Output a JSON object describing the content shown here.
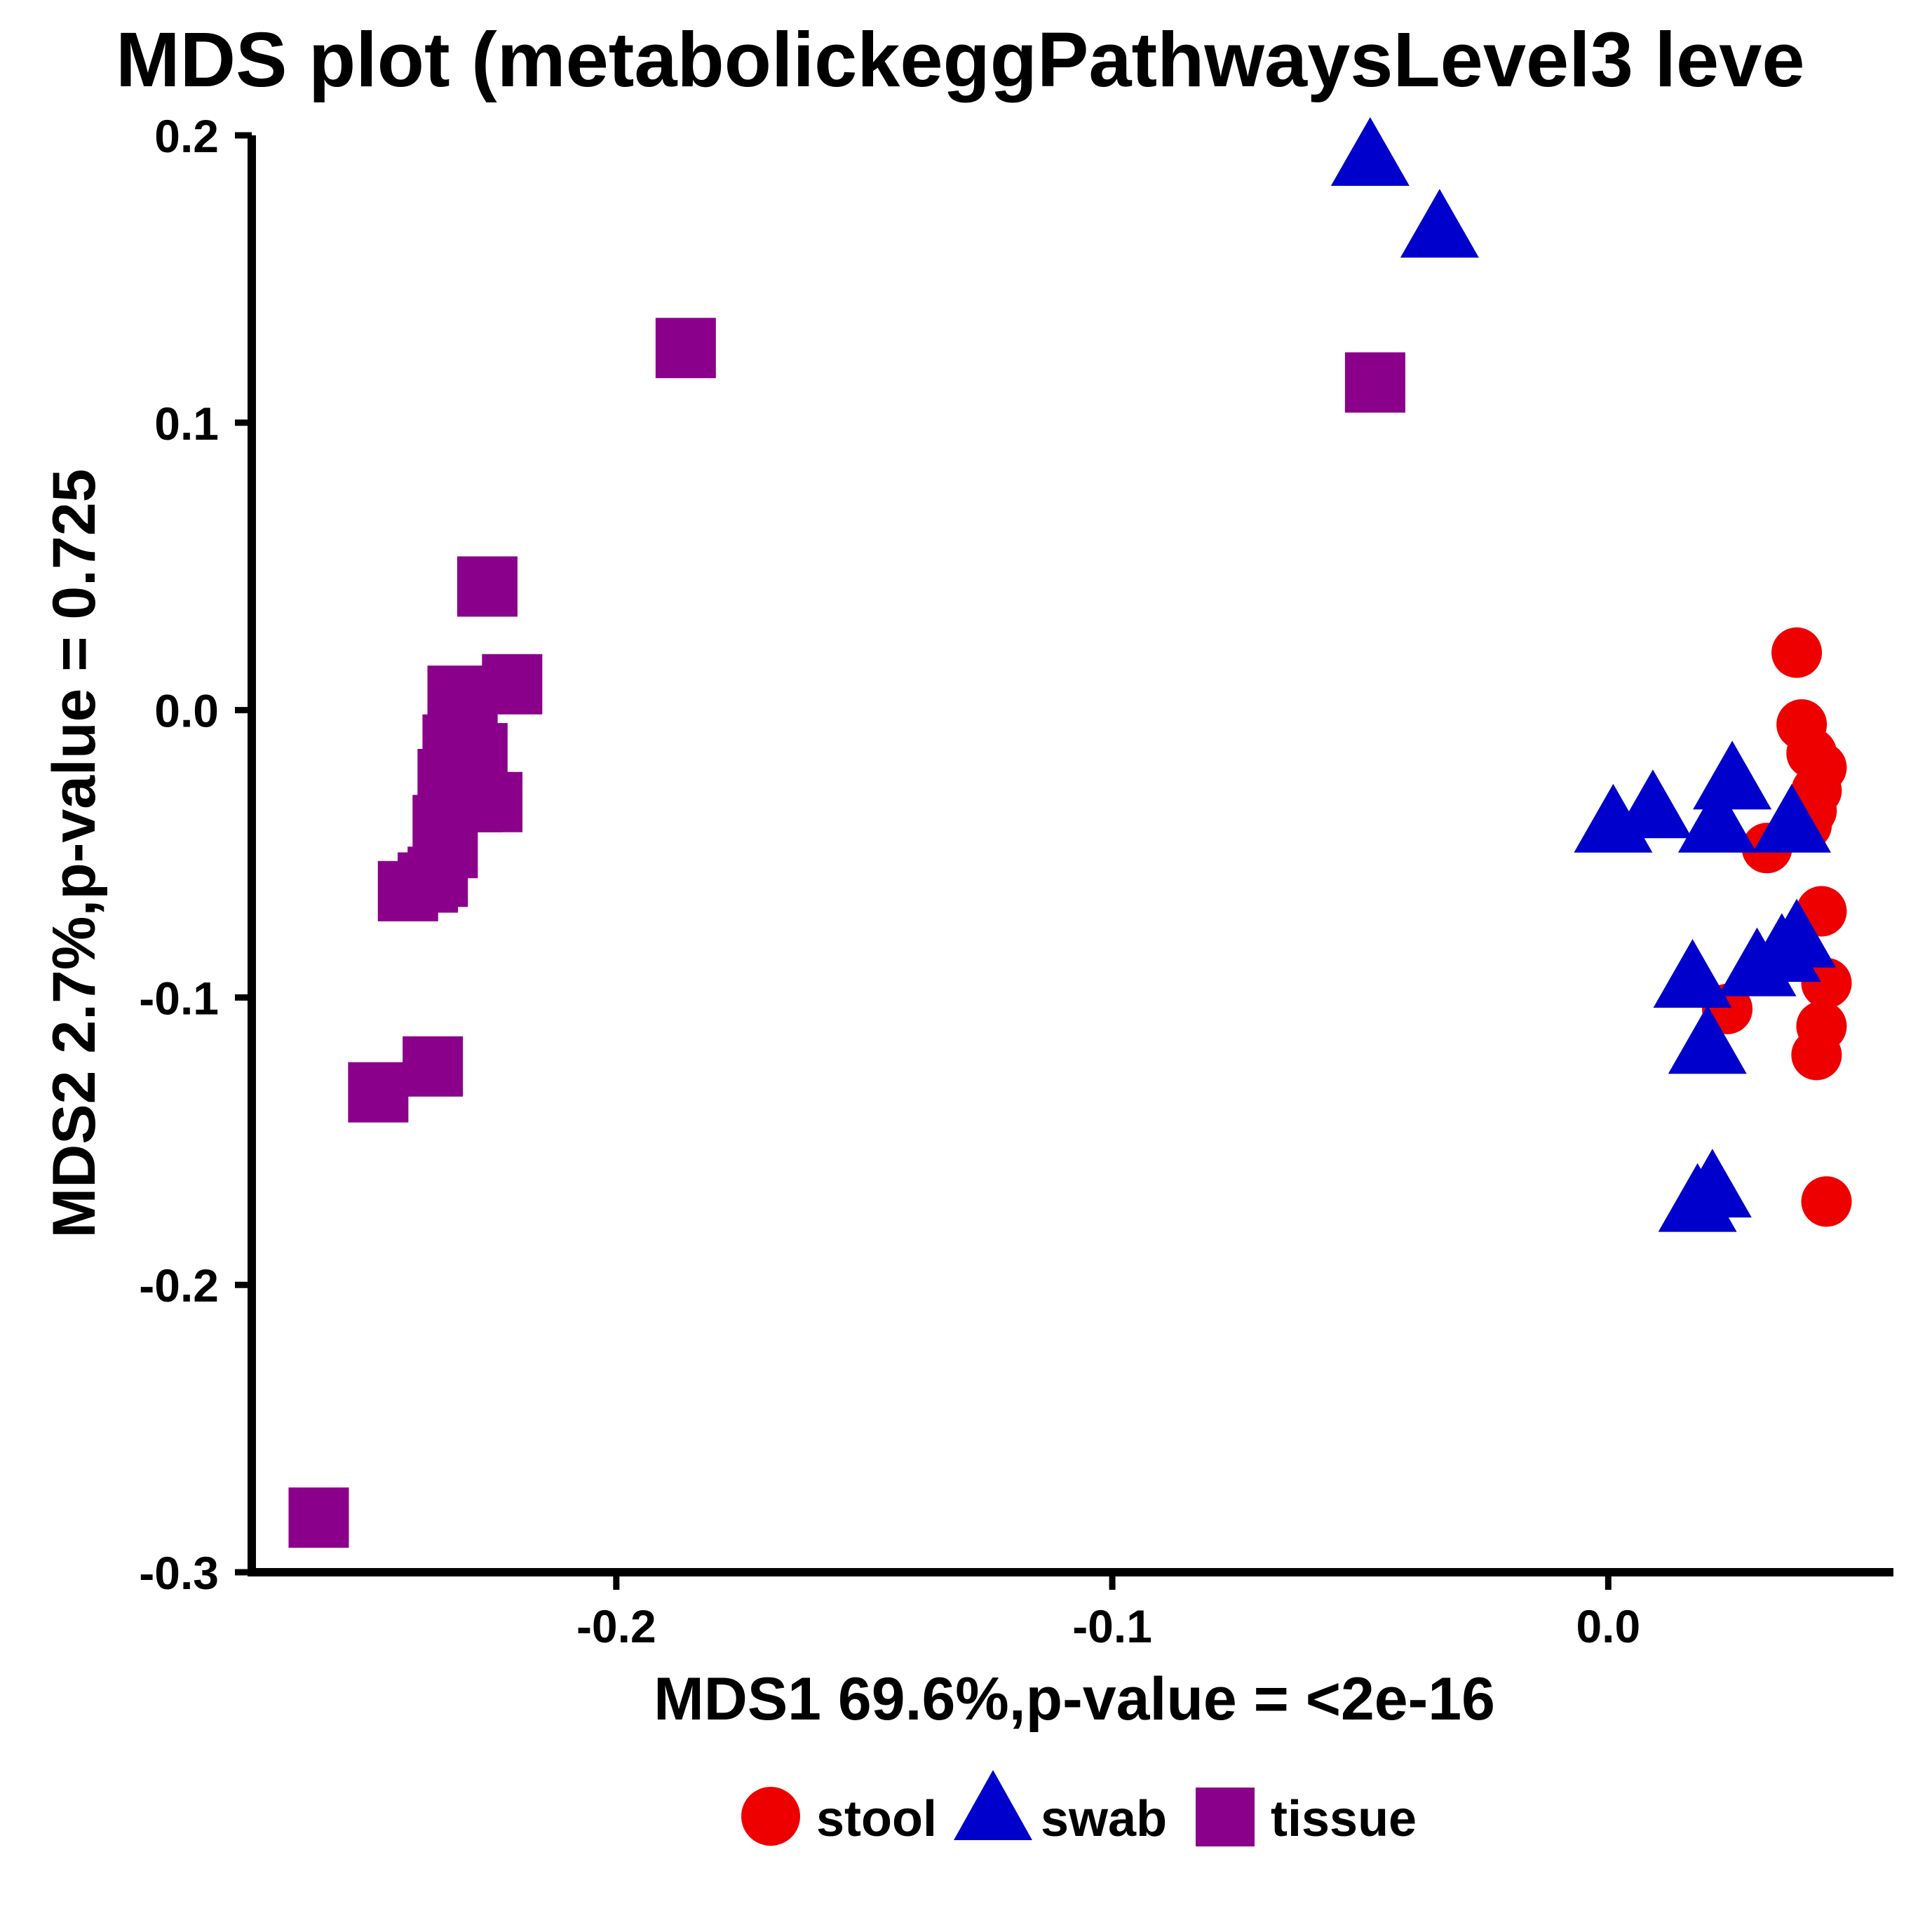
{
  "chart_data": {
    "type": "scatter",
    "title": "MDS plot (metabolickeggPathwaysLevel3 leve",
    "xlabel": "MDS1 69.6%,p-value = <2e-16",
    "ylabel": "MDS2 2.7%,p-value = 0.725",
    "xlim": [
      -0.2735,
      0.0575
    ],
    "ylim": [
      -0.3,
      0.2
    ],
    "x_ticks": [
      -0.2,
      -0.1,
      0.0
    ],
    "x_tick_labels": [
      "-0.2",
      "-0.1",
      "0.0"
    ],
    "y_ticks": [
      -0.3,
      -0.2,
      -0.1,
      0.0,
      0.1,
      0.2
    ],
    "y_tick_labels": [
      "-0.3",
      "-0.2",
      "-0.1",
      "0.0",
      "0.1",
      "0.2"
    ],
    "grid": false,
    "legend": {
      "position": "bottom",
      "entries": [
        "stool",
        "swab",
        "tissue"
      ]
    },
    "series": [
      {
        "name": "stool",
        "shape": "circle",
        "color": "#ee0000",
        "points": [
          {
            "x": 0.038,
            "y": 0.02
          },
          {
            "x": 0.039,
            "y": -0.005
          },
          {
            "x": 0.041,
            "y": -0.015
          },
          {
            "x": 0.043,
            "y": -0.02
          },
          {
            "x": 0.042,
            "y": -0.028
          },
          {
            "x": 0.041,
            "y": -0.035
          },
          {
            "x": 0.04,
            "y": -0.04
          },
          {
            "x": 0.032,
            "y": -0.048
          },
          {
            "x": 0.043,
            "y": -0.07
          },
          {
            "x": 0.044,
            "y": -0.095
          },
          {
            "x": 0.024,
            "y": -0.104
          },
          {
            "x": 0.043,
            "y": -0.11
          },
          {
            "x": 0.042,
            "y": -0.12
          },
          {
            "x": 0.044,
            "y": -0.171
          }
        ]
      },
      {
        "name": "swab",
        "shape": "triangle",
        "color": "#0000cc",
        "points": [
          {
            "x": -0.048,
            "y": 0.192
          },
          {
            "x": -0.034,
            "y": 0.167
          },
          {
            "x": 0.001,
            "y": -0.04
          },
          {
            "x": 0.009,
            "y": -0.035
          },
          {
            "x": 0.025,
            "y": -0.025
          },
          {
            "x": 0.022,
            "y": -0.04
          },
          {
            "x": 0.037,
            "y": -0.04
          },
          {
            "x": 0.03,
            "y": -0.09
          },
          {
            "x": 0.035,
            "y": -0.085
          },
          {
            "x": 0.038,
            "y": -0.08
          },
          {
            "x": 0.017,
            "y": -0.094
          },
          {
            "x": 0.02,
            "y": -0.117
          },
          {
            "x": 0.021,
            "y": -0.167
          },
          {
            "x": 0.018,
            "y": -0.172
          }
        ]
      },
      {
        "name": "tissue",
        "shape": "square",
        "color": "#8b008b",
        "points": [
          {
            "x": -0.186,
            "y": 0.126
          },
          {
            "x": -0.047,
            "y": 0.114
          },
          {
            "x": -0.226,
            "y": 0.043
          },
          {
            "x": -0.232,
            "y": 0.005
          },
          {
            "x": -0.221,
            "y": 0.009
          },
          {
            "x": -0.23,
            "y": -0.005
          },
          {
            "x": -0.233,
            "y": -0.012
          },
          {
            "x": -0.228,
            "y": -0.015
          },
          {
            "x": -0.234,
            "y": -0.024
          },
          {
            "x": -0.229,
            "y": -0.032
          },
          {
            "x": -0.225,
            "y": -0.032
          },
          {
            "x": -0.235,
            "y": -0.04
          },
          {
            "x": -0.234,
            "y": -0.048
          },
          {
            "x": -0.236,
            "y": -0.058
          },
          {
            "x": -0.242,
            "y": -0.063
          },
          {
            "x": -0.238,
            "y": -0.06
          },
          {
            "x": -0.237,
            "y": -0.124
          },
          {
            "x": -0.248,
            "y": -0.133
          },
          {
            "x": -0.26,
            "y": -0.281
          }
        ]
      }
    ]
  }
}
